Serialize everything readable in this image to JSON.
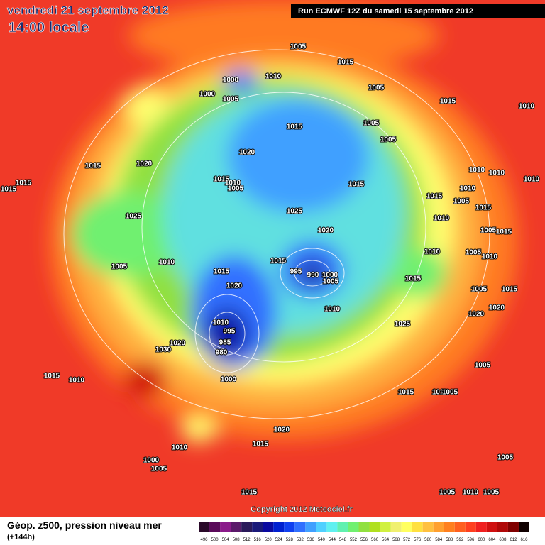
{
  "header": {
    "title": "vendredi 21 septembre 2012",
    "subtitle": "14:00 locale",
    "run": "Run ECMWF 12Z du samedi 15 septembre 2012"
  },
  "copyright": "Copyright 2012 Meteociel.fr",
  "footer": {
    "field": "Géop. z500, pression niveau mer",
    "lead": "(+144h)"
  },
  "scale": {
    "labels": [
      496,
      500,
      504,
      508,
      512,
      516,
      520,
      524,
      528,
      532,
      536,
      540,
      544,
      548,
      552,
      556,
      560,
      564,
      568,
      572,
      576,
      580,
      584,
      588,
      592,
      596,
      600,
      604,
      608,
      612,
      616
    ],
    "colors": [
      "#2a0a2a",
      "#5a0a5a",
      "#8a1a8a",
      "#5a1a6a",
      "#2a1a5a",
      "#1a1a7a",
      "#0a0aa0",
      "#0020d0",
      "#1040f0",
      "#3070ff",
      "#40a0ff",
      "#50d0ff",
      "#60f0f0",
      "#60f0b0",
      "#70f070",
      "#90e040",
      "#b0e020",
      "#d0f040",
      "#f0f070",
      "#ffff60",
      "#ffe040",
      "#ffc040",
      "#ffa030",
      "#ff8020",
      "#ff6020",
      "#ff4020",
      "#f02020",
      "#d01010",
      "#b00808",
      "#800000",
      "#100000"
    ]
  },
  "isobar_labels": [
    "1005",
    "1015",
    "1000",
    "1010",
    "1000",
    "1005",
    "1005",
    "1015",
    "1010",
    "1005",
    "1015",
    "1005",
    "1020",
    "1020",
    "1015",
    "1015",
    "1015",
    "1015",
    "1010",
    "1005",
    "1015",
    "1010",
    "1010",
    "1010",
    "1010",
    "1015",
    "1005",
    "1025",
    "1025",
    "1010",
    "1015",
    "1020",
    "1005",
    "1015",
    "1010",
    "1005",
    "1015",
    "995",
    "990",
    "1000",
    "1005",
    "1015",
    "1010",
    "1005",
    "1010",
    "1015",
    "1020",
    "1010",
    "1005",
    "1015",
    "1020",
    "1020",
    "1010",
    "995",
    "985",
    "980",
    "1025",
    "1020",
    "1030",
    "1015",
    "1010",
    "1000",
    "1005",
    "1015",
    "1010",
    "1005",
    "1020",
    "1015",
    "1010",
    "1000",
    "1005",
    "1005",
    "1015",
    "1005",
    "1010",
    "1005"
  ]
}
